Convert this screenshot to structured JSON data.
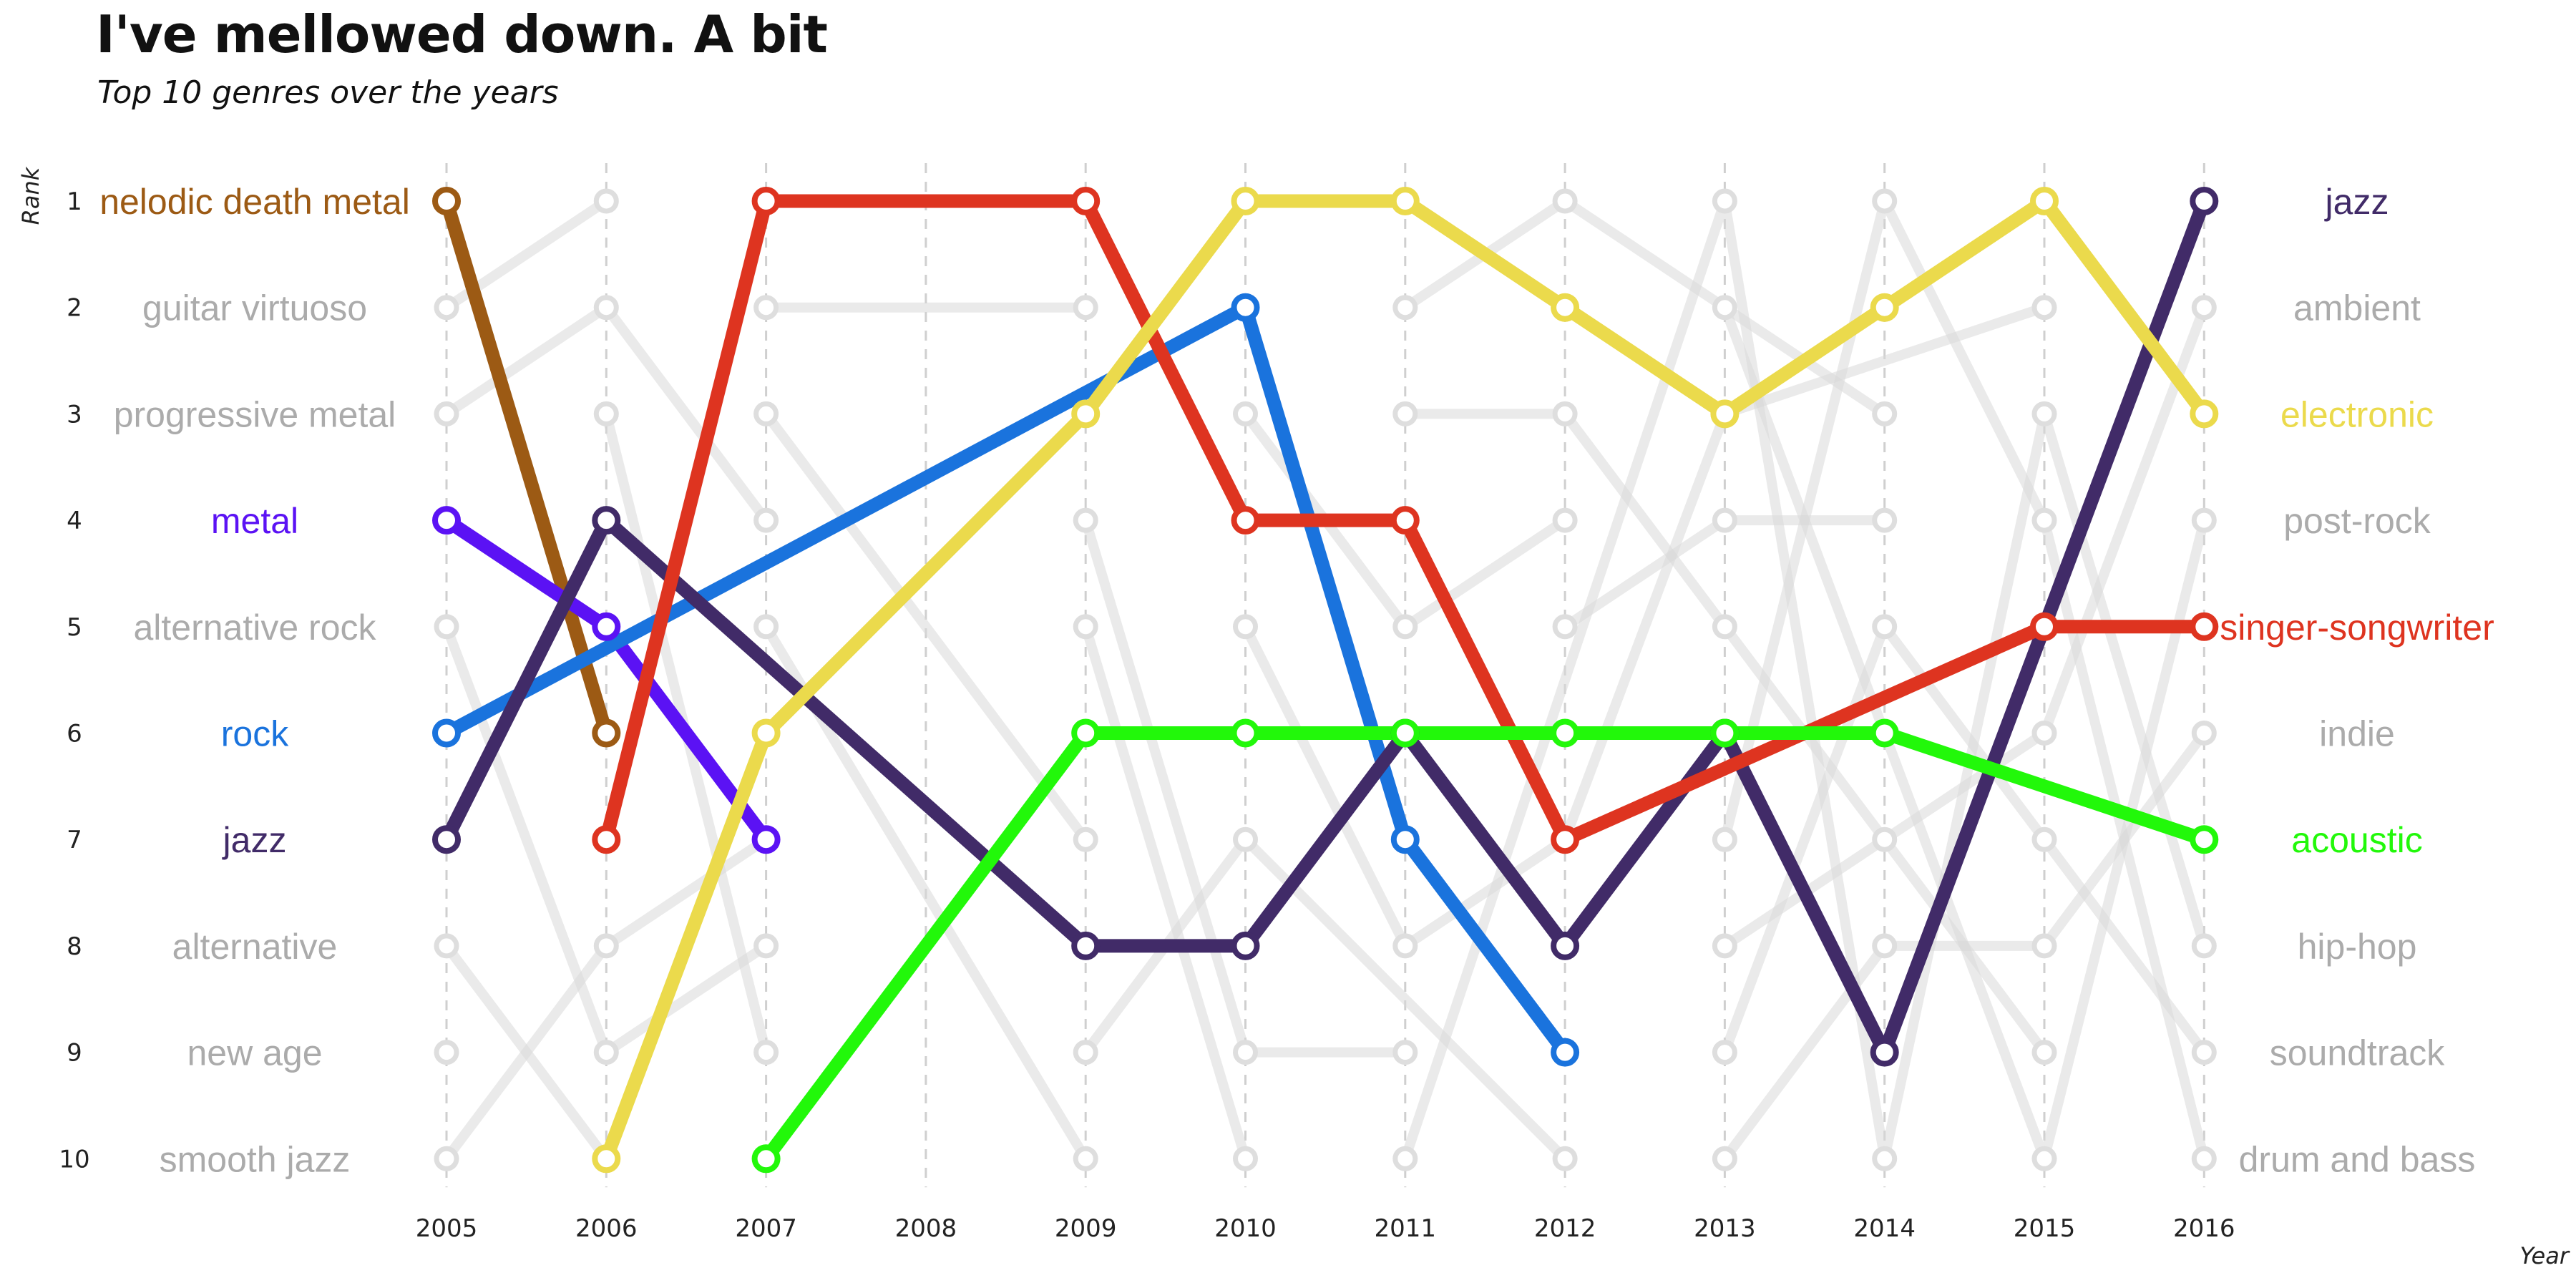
{
  "title": "I've mellowed down. A bit",
  "subtitle": "Top 10 genres over the years",
  "chart_data": {
    "type": "line",
    "chart_kind": "bump chart (rank over time)",
    "xlabel": "Year",
    "ylabel": "Rank",
    "x": [
      2005,
      2006,
      2007,
      2008,
      2009,
      2010,
      2011,
      2012,
      2013,
      2014,
      2015,
      2016
    ],
    "x_ticks": [
      "2005",
      "2006",
      "2007",
      "2008",
      "2009",
      "2010",
      "2011",
      "2012",
      "2013",
      "2014",
      "2015",
      "2016"
    ],
    "y_ticks": [
      "1",
      "2",
      "3",
      "4",
      "5",
      "6",
      "7",
      "8",
      "9",
      "10"
    ],
    "ylim": [
      1,
      10
    ],
    "y_reversed": true,
    "grid": "vertical dashed lines at each year",
    "left_labels": [
      {
        "text": "nelodic death metal",
        "rank": 1,
        "color": "#9C5A14"
      },
      {
        "text": "guitar virtuoso",
        "rank": 2,
        "color": "#ABABAB"
      },
      {
        "text": "progressive metal",
        "rank": 3,
        "color": "#ABABAB"
      },
      {
        "text": "metal",
        "rank": 4,
        "color": "#5B12F4"
      },
      {
        "text": "alternative rock",
        "rank": 5,
        "color": "#ABABAB"
      },
      {
        "text": "rock",
        "rank": 6,
        "color": "#1A73DD"
      },
      {
        "text": "jazz",
        "rank": 7,
        "color": "#412B68"
      },
      {
        "text": "alternative",
        "rank": 8,
        "color": "#ABABAB"
      },
      {
        "text": "new age",
        "rank": 9,
        "color": "#ABABAB"
      },
      {
        "text": "smooth jazz",
        "rank": 10,
        "color": "#ABABAB"
      }
    ],
    "right_labels": [
      {
        "text": "jazz",
        "rank": 1,
        "color": "#412B68"
      },
      {
        "text": "ambient",
        "rank": 2,
        "color": "#ABABAB"
      },
      {
        "text": "electronic",
        "rank": 3,
        "color": "#EBDA4C"
      },
      {
        "text": "post-rock",
        "rank": 4,
        "color": "#ABABAB"
      },
      {
        "text": "singer-songwriter",
        "rank": 5,
        "color": "#DE3420"
      },
      {
        "text": "indie",
        "rank": 6,
        "color": "#ABABAB"
      },
      {
        "text": "acoustic",
        "rank": 7,
        "color": "#22F80A"
      },
      {
        "text": "hip-hop",
        "rank": 8,
        "color": "#ABABAB"
      },
      {
        "text": "soundtrack",
        "rank": 9,
        "color": "#ABABAB"
      },
      {
        "text": "drum and bass",
        "rank": 10,
        "color": "#ABABAB"
      }
    ],
    "series": [
      {
        "key": "melodic-death-metal",
        "color": "#9C5A14",
        "points": [
          [
            2005,
            1
          ],
          [
            2006,
            6
          ]
        ]
      },
      {
        "key": "metal",
        "color": "#5B12F4",
        "points": [
          [
            2005,
            4
          ],
          [
            2006,
            5
          ],
          [
            2007,
            7
          ]
        ]
      },
      {
        "key": "rock",
        "color": "#1A73DD",
        "points": [
          [
            2005,
            6
          ],
          [
            2010,
            2
          ],
          [
            2011,
            7
          ],
          [
            2012,
            9
          ]
        ]
      },
      {
        "key": "jazz",
        "color": "#412B68",
        "points": [
          [
            2005,
            7
          ],
          [
            2006,
            4
          ],
          [
            2009,
            8
          ],
          [
            2010,
            8
          ],
          [
            2011,
            6
          ],
          [
            2012,
            8
          ],
          [
            2013,
            6
          ],
          [
            2014,
            9
          ],
          [
            2016,
            1
          ]
        ]
      },
      {
        "key": "singer-songwriter",
        "color": "#DE3420",
        "points": [
          [
            2006,
            7
          ],
          [
            2007,
            1
          ],
          [
            2009,
            1
          ],
          [
            2010,
            4
          ],
          [
            2011,
            4
          ],
          [
            2012,
            7
          ],
          [
            2015,
            5
          ],
          [
            2016,
            5
          ]
        ]
      },
      {
        "key": "electronic",
        "color": "#EBDA4C",
        "points": [
          [
            2006,
            10
          ],
          [
            2007,
            6
          ],
          [
            2009,
            3
          ],
          [
            2010,
            1
          ],
          [
            2011,
            1
          ],
          [
            2012,
            2
          ],
          [
            2013,
            3
          ],
          [
            2014,
            2
          ],
          [
            2015,
            1
          ],
          [
            2016,
            3
          ]
        ]
      },
      {
        "key": "acoustic",
        "color": "#22F80A",
        "points": [
          [
            2007,
            10
          ],
          [
            2009,
            6
          ],
          [
            2010,
            6
          ],
          [
            2011,
            6
          ],
          [
            2012,
            6
          ],
          [
            2013,
            6
          ],
          [
            2014,
            6
          ],
          [
            2016,
            7
          ]
        ]
      }
    ],
    "background_series": [
      {
        "points": [
          [
            2005,
            2
          ],
          [
            2006,
            1
          ]
        ]
      },
      {
        "points": [
          [
            2005,
            3
          ],
          [
            2006,
            2
          ],
          [
            2007,
            4
          ]
        ]
      },
      {
        "points": [
          [
            2005,
            5
          ],
          [
            2006,
            9
          ],
          [
            2007,
            8
          ]
        ]
      },
      {
        "points": [
          [
            2005,
            8
          ],
          [
            2006,
            10
          ]
        ]
      },
      {
        "points": [
          [
            2005,
            10
          ],
          [
            2006,
            8
          ],
          [
            2007,
            7
          ]
        ]
      },
      {
        "points": [
          [
            2006,
            3
          ],
          [
            2007,
            9
          ]
        ]
      },
      {
        "points": [
          [
            2007,
            2
          ],
          [
            2009,
            2
          ]
        ]
      },
      {
        "points": [
          [
            2007,
            5
          ],
          [
            2009,
            10
          ]
        ]
      },
      {
        "points": [
          [
            2007,
            3
          ],
          [
            2009,
            7
          ]
        ]
      },
      {
        "points": [
          [
            2009,
            4
          ],
          [
            2010,
            9
          ],
          [
            2011,
            9
          ]
        ]
      },
      {
        "points": [
          [
            2009,
            5
          ],
          [
            2010,
            10
          ]
        ]
      },
      {
        "points": [
          [
            2009,
            9
          ],
          [
            2010,
            7
          ],
          [
            2012,
            10
          ]
        ]
      },
      {
        "points": [
          [
            2010,
            3
          ],
          [
            2011,
            5
          ],
          [
            2012,
            4
          ]
        ]
      },
      {
        "points": [
          [
            2010,
            5
          ],
          [
            2011,
            8
          ],
          [
            2012,
            7
          ],
          [
            2013,
            3
          ],
          [
            2015,
            2
          ]
        ]
      },
      {
        "points": [
          [
            2011,
            2
          ],
          [
            2012,
            1
          ],
          [
            2014,
            3
          ]
        ]
      },
      {
        "points": [
          [
            2011,
            3
          ],
          [
            2012,
            3
          ],
          [
            2013,
            5
          ],
          [
            2014,
            7
          ],
          [
            2015,
            9
          ]
        ]
      },
      {
        "points": [
          [
            2011,
            10
          ],
          [
            2013,
            1
          ],
          [
            2014,
            10
          ],
          [
            2015,
            3
          ],
          [
            2016,
            8
          ]
        ]
      },
      {
        "points": [
          [
            2012,
            5
          ],
          [
            2013,
            4
          ],
          [
            2014,
            4
          ]
        ]
      },
      {
        "points": [
          [
            2013,
            2
          ],
          [
            2015,
            10
          ],
          [
            2016,
            4
          ]
        ]
      },
      {
        "points": [
          [
            2013,
            7
          ],
          [
            2014,
            1
          ],
          [
            2015,
            4
          ],
          [
            2016,
            10
          ]
        ]
      },
      {
        "points": [
          [
            2013,
            8
          ],
          [
            2015,
            6
          ],
          [
            2016,
            2
          ]
        ]
      },
      {
        "points": [
          [
            2013,
            9
          ],
          [
            2014,
            5
          ],
          [
            2015,
            7
          ],
          [
            2016,
            9
          ]
        ]
      },
      {
        "points": [
          [
            2013,
            10
          ],
          [
            2014,
            8
          ],
          [
            2015,
            8
          ],
          [
            2016,
            6
          ]
        ]
      }
    ]
  }
}
